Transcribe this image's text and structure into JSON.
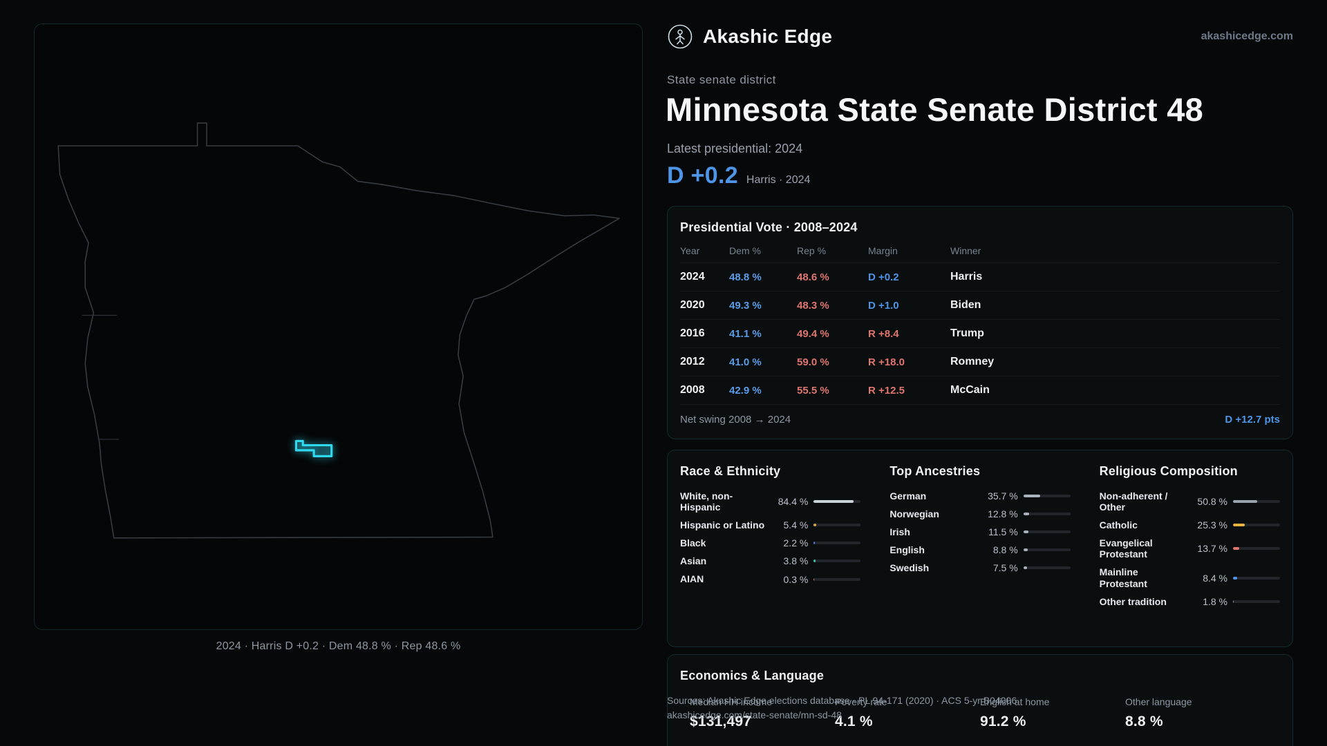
{
  "header": {
    "brand": "Akashic Edge",
    "site": "akashicedge.com"
  },
  "hero": {
    "kicker": "State senate district",
    "title": "Minnesota State Senate District 48",
    "latest_label": "Latest presidential: 2024",
    "margin_big": "D +0.2",
    "margin_sub": "Harris · 2024"
  },
  "map": {
    "caption": "2024 · Harris D +0.2 · Dem 48.8 % · Rep 48.6 %",
    "accent_color": "#2fd8ee"
  },
  "vote_table": {
    "title": "Presidential Vote · 2008–2024",
    "columns": [
      "Year",
      "Dem %",
      "Rep %",
      "Margin",
      "Winner"
    ],
    "rows": [
      {
        "year": "2024",
        "dem": "48.8 %",
        "rep": "48.6 %",
        "margin": "D +0.2",
        "margin_class": "pD",
        "winner": "Harris"
      },
      {
        "year": "2020",
        "dem": "49.3 %",
        "rep": "48.3 %",
        "margin": "D +1.0",
        "margin_class": "pD",
        "winner": "Biden"
      },
      {
        "year": "2016",
        "dem": "41.1 %",
        "rep": "49.4 %",
        "margin": "R +8.4",
        "margin_class": "pR",
        "winner": "Trump"
      },
      {
        "year": "2012",
        "dem": "41.0 %",
        "rep": "59.0 %",
        "margin": "R +18.0",
        "margin_class": "pR",
        "winner": "Romney"
      },
      {
        "year": "2008",
        "dem": "42.9 %",
        "rep": "55.5 %",
        "margin": "R +12.5",
        "margin_class": "pR",
        "winner": "McCain"
      }
    ],
    "footer_label": "Net swing 2008 → 2024",
    "footer_value": "D +12.7 pts",
    "dem_color": "#5b9ce8",
    "rep_color": "#e0756f"
  },
  "race": {
    "title": "Race & Ethnicity",
    "rows": [
      {
        "label": "White, non-Hispanic",
        "value": "84.4 %",
        "pct": 84.4,
        "color": "#c9d1d9"
      },
      {
        "label": "Hispanic or Latino",
        "value": "5.4 %",
        "pct": 5.4,
        "color": "#e0a33e"
      },
      {
        "label": "Black",
        "value": "2.2 %",
        "pct": 2.2,
        "color": "#5b76dd"
      },
      {
        "label": "Asian",
        "value": "3.8 %",
        "pct": 3.8,
        "color": "#3ec6a8"
      },
      {
        "label": "AIAN",
        "value": "0.3 %",
        "pct": 0.3,
        "color": "#e06c4f"
      }
    ]
  },
  "ancestries": {
    "title": "Top Ancestries",
    "rows": [
      {
        "label": "German",
        "value": "35.7 %",
        "pct": 35.7,
        "color": "#aab3bd"
      },
      {
        "label": "Norwegian",
        "value": "12.8 %",
        "pct": 12.8,
        "color": "#aab3bd"
      },
      {
        "label": "Irish",
        "value": "11.5 %",
        "pct": 11.5,
        "color": "#aab3bd"
      },
      {
        "label": "English",
        "value": "8.8 %",
        "pct": 8.8,
        "color": "#aab3bd"
      },
      {
        "label": "Swedish",
        "value": "7.5 %",
        "pct": 7.5,
        "color": "#aab3bd"
      }
    ]
  },
  "religion": {
    "title": "Religious Composition",
    "rows": [
      {
        "label": "Non-adherent / Other",
        "value": "50.8 %",
        "pct": 50.8,
        "color": "#9aa3ad"
      },
      {
        "label": "Catholic",
        "value": "25.3 %",
        "pct": 25.3,
        "color": "#e3b341"
      },
      {
        "label": "Evangelical Protestant",
        "value": "13.7 %",
        "pct": 13.7,
        "color": "#e0756f"
      },
      {
        "label": "Mainline Protestant",
        "value": "8.4 %",
        "pct": 8.4,
        "color": "#4e95e8"
      },
      {
        "label": "Other tradition",
        "value": "1.8 %",
        "pct": 1.8,
        "color": "#9aa3ad"
      }
    ]
  },
  "economics": {
    "title": "Economics & Language",
    "stats": [
      {
        "label": "Median HH income",
        "value": "$131,497"
      },
      {
        "label": "Poverty rate",
        "value": "4.1 %"
      },
      {
        "label": "English at home",
        "value": "91.2 %"
      },
      {
        "label": "Other language",
        "value": "8.8 %"
      }
    ]
  },
  "footer": {
    "sources": "Sources: Akashic Edge elections database · PL 94-171 (2020) · ACS 5-yr B04006",
    "permalink": "akashicedge.com/state-senate/mn-sd-48"
  }
}
